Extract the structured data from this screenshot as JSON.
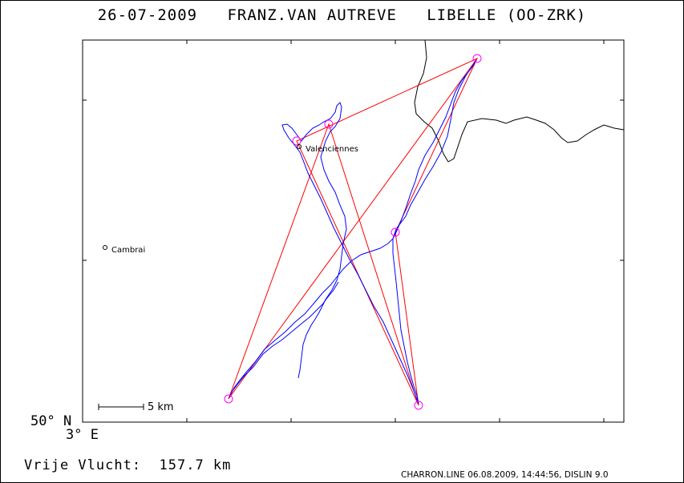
{
  "title": "26-07-2009   FRANZ.VAN AUTREVE   LIBELLE (OO-ZRK)",
  "map": {
    "towns": [
      {
        "name": "Valenciennes"
      },
      {
        "name": "Cambrai"
      }
    ],
    "scale_label": "5 km",
    "lat_label": "50° N",
    "lon_label": "3° E"
  },
  "flight_label": "Vrije Vlucht:  157.7 km",
  "footer": "CHARRON.LINE 06.08.2009, 14:44:56, DISLIN 9.0",
  "colors": {
    "track": "#0000ff",
    "task": "#ff0000",
    "turnpoint": "#ff00ff",
    "border": "#000000"
  }
}
